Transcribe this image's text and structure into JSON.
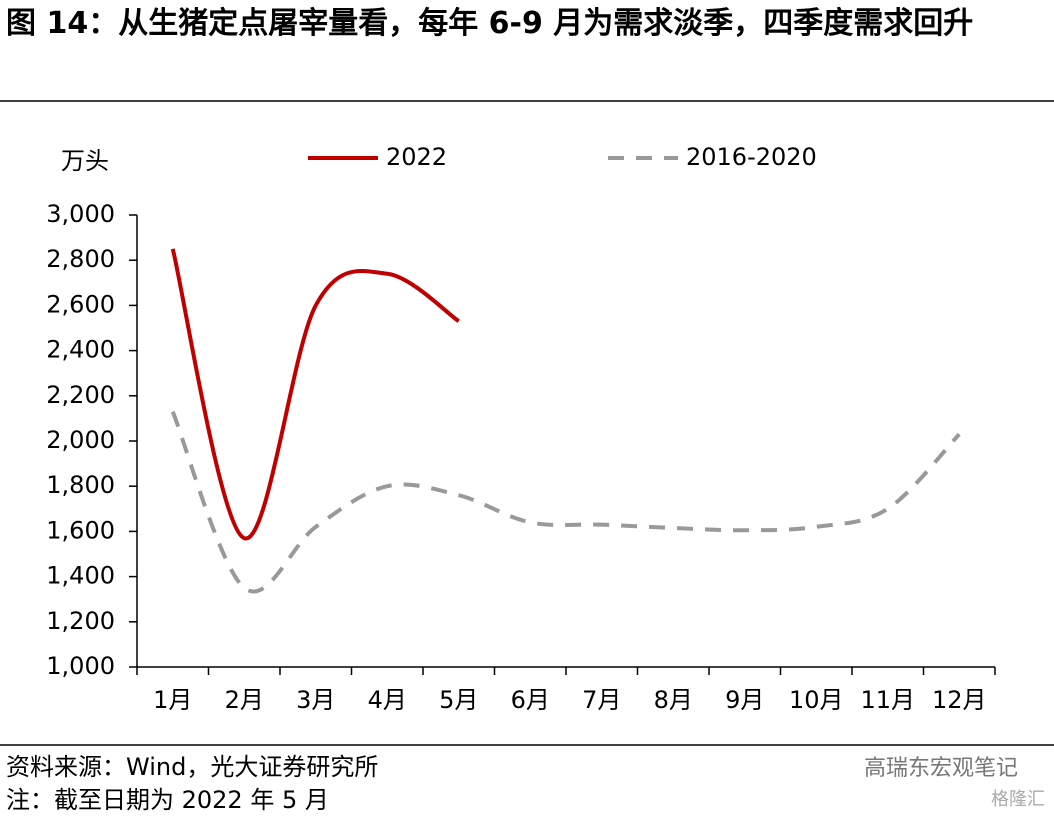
{
  "chart_data": {
    "type": "line",
    "title": "图 14：从生猪定点屠宰量看，每年 6-9 月为需求淡季，四季度需求回升",
    "y_label": "万头",
    "categories": [
      "1月",
      "2月",
      "3月",
      "4月",
      "5月",
      "6月",
      "7月",
      "8月",
      "9月",
      "10月",
      "11月",
      "12月"
    ],
    "series": [
      {
        "name": "2022",
        "color": "#c00000",
        "dashed": false,
        "values": [
          2850,
          1570,
          2600,
          2740,
          2530,
          null,
          null,
          null,
          null,
          null,
          null,
          null
        ]
      },
      {
        "name": "2016-2020",
        "color": "#999999",
        "dashed": true,
        "values": [
          2130,
          1350,
          1620,
          1800,
          1760,
          1640,
          1630,
          1615,
          1605,
          1620,
          1700,
          2030
        ]
      }
    ],
    "ylim": [
      1000,
      3000
    ],
    "yticks": [
      {
        "value": 1000,
        "label": "1,000"
      },
      {
        "value": 1200,
        "label": "1,200"
      },
      {
        "value": 1400,
        "label": "1,400"
      },
      {
        "value": 1600,
        "label": "1,600"
      },
      {
        "value": 1800,
        "label": "1,800"
      },
      {
        "value": 2000,
        "label": "2,000"
      },
      {
        "value": 2200,
        "label": "2,200"
      },
      {
        "value": 2400,
        "label": "2,400"
      },
      {
        "value": 2600,
        "label": "2,600"
      },
      {
        "value": 2800,
        "label": "2,800"
      },
      {
        "value": 3000,
        "label": "3,000"
      }
    ],
    "grid": false,
    "legend": "top",
    "source": "资料来源：Wind，光大证券研究所",
    "note": "注：截至日期为 2022 年 5 月",
    "watermark": [
      "高瑞东宏观笔记",
      "格隆汇"
    ]
  }
}
